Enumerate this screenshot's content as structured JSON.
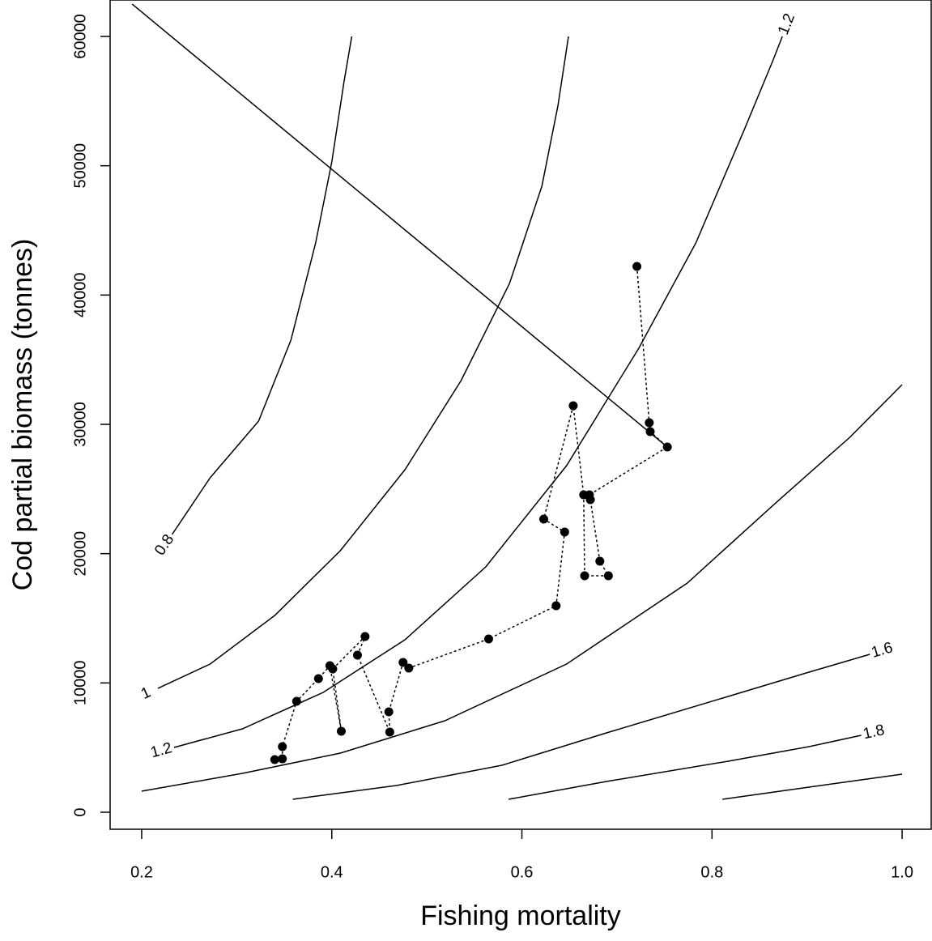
{
  "chart_data": {
    "type": "line",
    "xlabel": "Fishing mortality",
    "ylabel": "Cod partial biomass (tonnes)",
    "xlim": [
      0.1668,
      1.0306
    ],
    "ylim": [
      -1315,
      62818
    ],
    "xticks": [
      0.2,
      0.4,
      0.6,
      0.8,
      {
        "value": 1,
        "label": "1.0"
      }
    ],
    "yticks": [
      0,
      10000,
      20000,
      30000,
      40000,
      50000,
      60000
    ],
    "series": [
      {
        "color": "#000000",
        "x": [
          0.721,
          0.734,
          0.735,
          0.753,
          0.671,
          0.672,
          0.682,
          0.691,
          0.666,
          0.665,
          0.654,
          0.623,
          0.645,
          0.636,
          0.565,
          0.481,
          0.475,
          0.46,
          0.461,
          0.427,
          0.435,
          0.401,
          0.41,
          0.398,
          0.386,
          0.363,
          0.348,
          0.348,
          0.34
        ],
        "values": [
          42212,
          30125,
          29436,
          28246,
          24550,
          24175,
          19415,
          18288,
          18288,
          24550,
          31440,
          22672,
          21670,
          15970,
          13403,
          11148,
          11586,
          7766,
          6200,
          12150,
          13590,
          11085,
          6263,
          11336,
          10334,
          8580,
          5073,
          4134,
          4071
        ]
      }
    ],
    "reference_line": {
      "x": [
        0.19,
        0.753
      ],
      "y": [
        62500,
        28246
      ]
    },
    "contours": [
      {
        "labels": [
          "0.8"
        ],
        "x": [
          0.232,
          0.272,
          0.323,
          0.357,
          0.383,
          0.4,
          0.413,
          0.421
        ],
        "y": [
          21482,
          25866,
          30250,
          36513,
          44028,
          50291,
          56554,
          59999
        ]
      },
      {
        "labels": [
          "1"
        ],
        "x": [
          0.217,
          0.272,
          0.34,
          0.409,
          0.477,
          0.536,
          0.587,
          0.621,
          0.638,
          0.649
        ],
        "y": [
          9582,
          11461,
          15219,
          20229,
          26492,
          33382,
          40897,
          48412,
          54675,
          59999
        ]
      },
      {
        "labels": [
          "1.2",
          "1.2"
        ],
        "x": [
          0.234,
          0.306,
          0.391,
          0.477,
          0.562,
          0.647,
          0.723,
          0.783,
          0.834,
          0.864,
          0.874
        ],
        "y": [
          5010,
          6451,
          9269,
          13340,
          18977,
          26805,
          35887,
          44028,
          52796,
          58120,
          59999
        ]
      },
      {
        "x": [
          0.2,
          0.306,
          0.409,
          0.519,
          0.647,
          0.774,
          0.868,
          0.945,
          1.0
        ],
        "y": [
          1628,
          3006,
          4572,
          7077,
          11461,
          17724,
          23987,
          28997,
          33068
        ]
      },
      {
        "labels": [
          "1.6"
        ],
        "x": [
          0.359,
          0.468,
          0.579,
          0.689,
          0.817,
          0.902,
          0.966
        ],
        "y": [
          1002,
          2067,
          3633,
          6138,
          8956,
          10835,
          12213
        ]
      },
      {
        "labels": [
          "1.8"
        ],
        "x": [
          0.586,
          0.689,
          0.817,
          0.902,
          0.957
        ],
        "y": [
          1002,
          2380,
          3946,
          5073,
          5950
        ]
      },
      {
        "x": [
          0.811,
          0.902,
          1.0
        ],
        "y": [
          1002,
          1941,
          2944
        ]
      }
    ]
  }
}
